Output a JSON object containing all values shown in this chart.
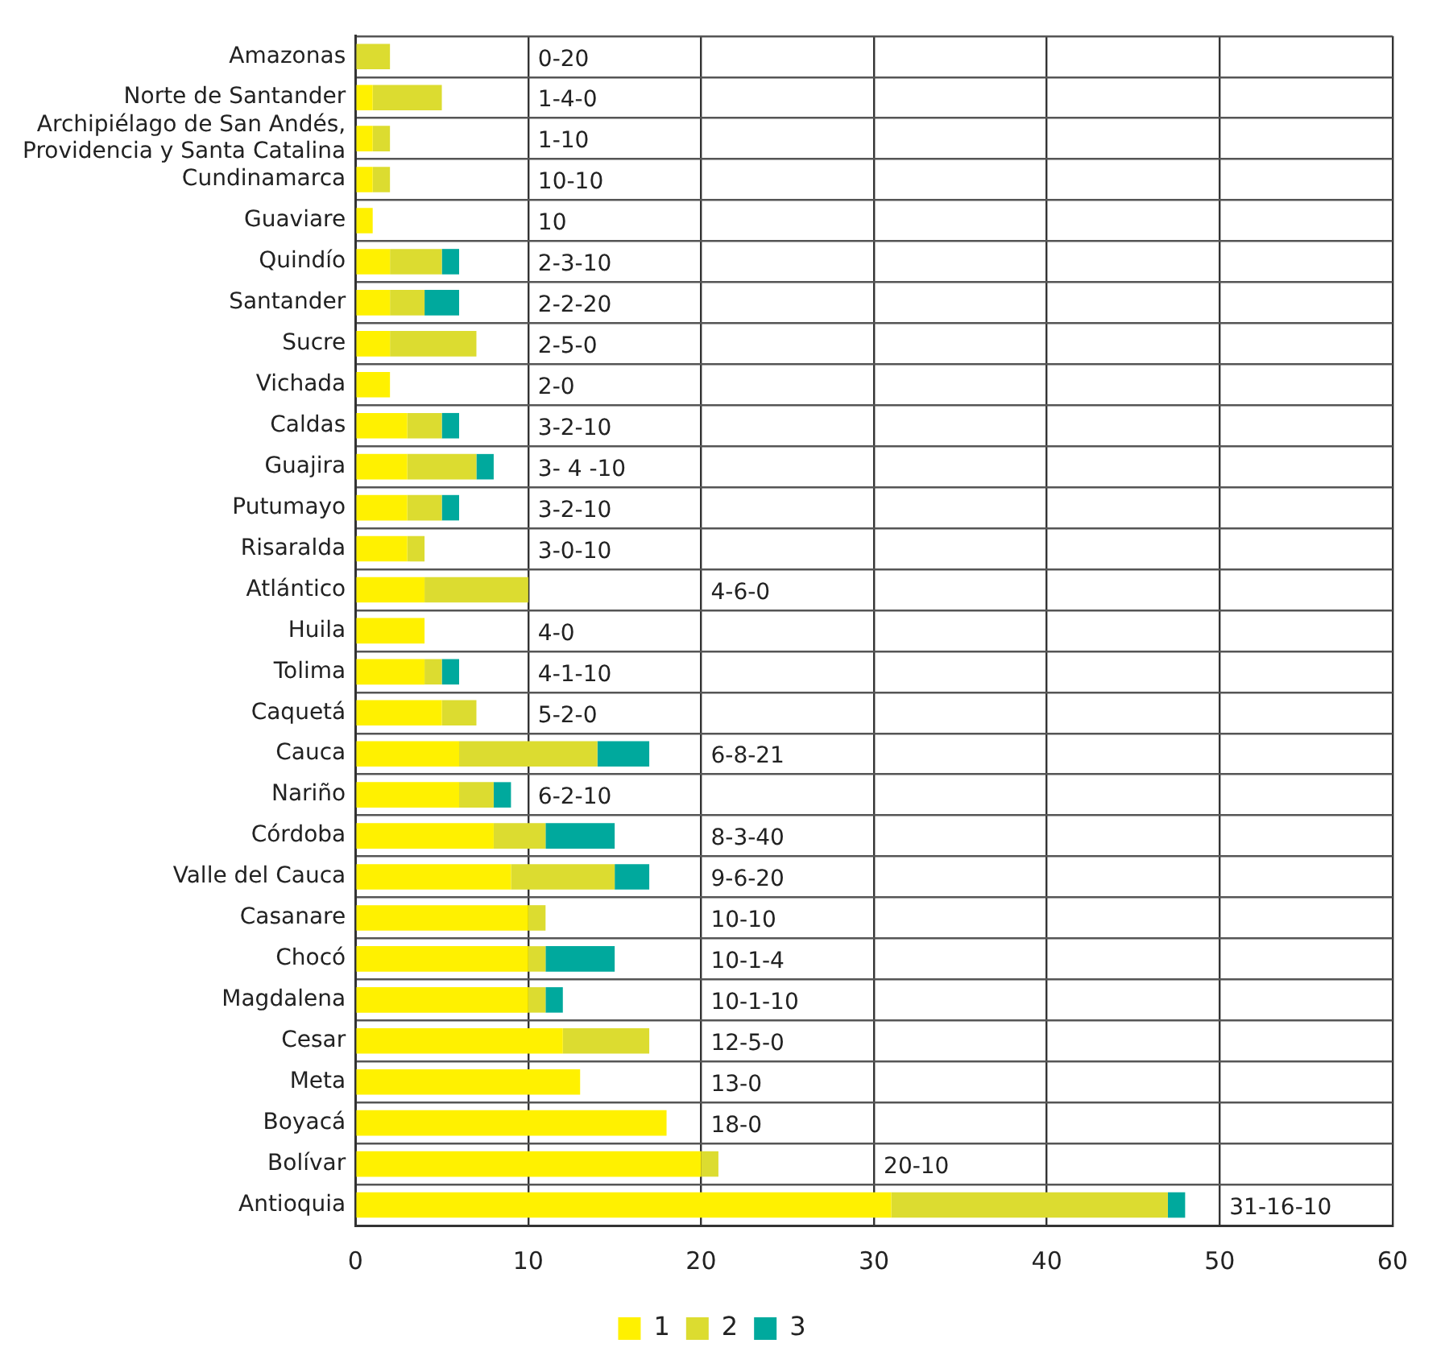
{
  "chart_data": {
    "type": "bar",
    "orientation": "horizontal",
    "stacked": true,
    "categories": [
      "Amazonas",
      "Norte de Santander",
      "Archipiélago de San Andés, Providencia y Santa Catalina",
      "Cundinamarca",
      "Guaviare",
      "Quindío",
      "Santander",
      "Sucre",
      "Vichada",
      "Caldas",
      "Guajira",
      "Putumayo",
      "Risaralda",
      "Atlántico",
      "Huila",
      "Tolima",
      "Caquetá",
      "Cauca",
      "Nariño",
      "Córdoba",
      "Valle del Cauca",
      "Casanare",
      "Chocó",
      "Magdalena",
      "Cesar",
      "Meta",
      "Boyacá",
      "Bolívar",
      "Antioquia"
    ],
    "series": [
      {
        "name": "1",
        "color": "#fff100",
        "values": [
          0,
          1,
          1,
          1,
          1,
          2,
          2,
          2,
          2,
          3,
          3,
          3,
          3,
          4,
          4,
          4,
          5,
          6,
          6,
          8,
          9,
          10,
          10,
          10,
          12,
          13,
          18,
          20,
          31
        ]
      },
      {
        "name": "2",
        "color": "#dcdc30",
        "values": [
          2,
          4,
          1,
          1,
          0,
          3,
          2,
          5,
          0,
          2,
          4,
          2,
          1,
          6,
          0,
          1,
          2,
          8,
          2,
          3,
          6,
          1,
          1,
          1,
          5,
          0,
          0,
          1,
          16
        ]
      },
      {
        "name": "3",
        "color": "#00a99d",
        "values": [
          0,
          0,
          0,
          0,
          0,
          1,
          2,
          0,
          0,
          1,
          1,
          1,
          0,
          0,
          0,
          1,
          0,
          3,
          1,
          4,
          2,
          0,
          4,
          1,
          0,
          0,
          0,
          0,
          1
        ]
      }
    ],
    "xlim": [
      0,
      60
    ],
    "xticks": [
      0,
      10,
      20,
      30,
      40,
      50,
      60
    ],
    "grid": true,
    "legend": "bottom",
    "annotations": [
      "0-20",
      "1-4-0",
      "1-10",
      "10-10",
      "10",
      "2-3-10",
      "2-2-20",
      "2-5-0",
      "2-0",
      "3-2-10",
      "3- 4 -10",
      "3-2-10",
      "3-0-10",
      "4-6-0",
      "4-0",
      "4-1-10",
      "5-2-0",
      "6-8-21",
      "6-2-10",
      "8-3-40",
      "9-6-20",
      "10-10",
      "10-1-4",
      "10-1-10",
      "12-5-0",
      "13-0",
      "18-0",
      "20-10",
      "31-16-10"
    ]
  }
}
